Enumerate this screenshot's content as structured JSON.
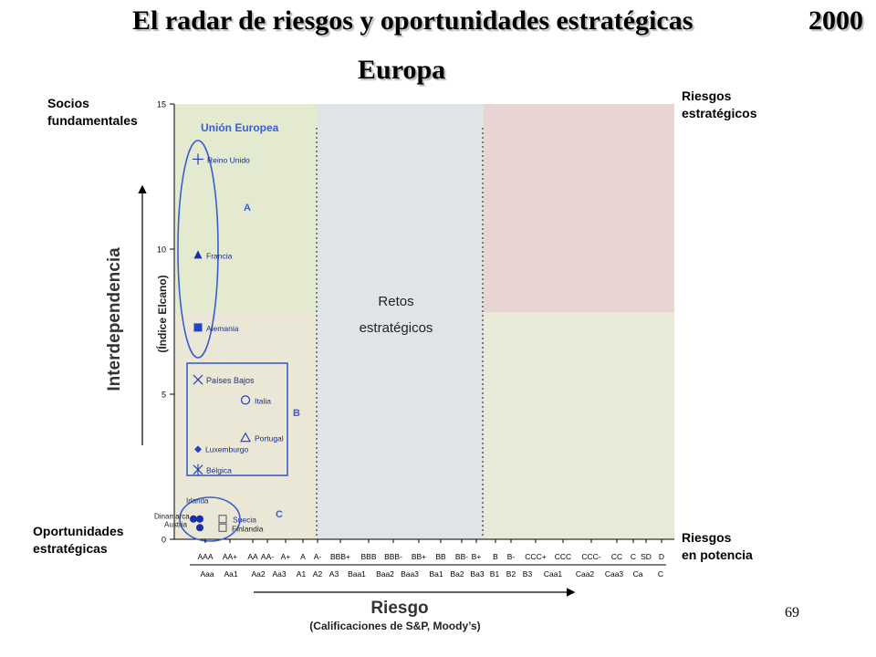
{
  "header": {
    "title": "El radar de riesgos y oportunidades estratégicas",
    "year": "2000",
    "subtitle": "Europa"
  },
  "corners": {
    "top_left": [
      "Socios",
      "fundamentales"
    ],
    "top_right": [
      "Riesgos",
      "estratégicos"
    ],
    "bottom_left": [
      "Oportunidades",
      "estratégicas"
    ],
    "bottom_right": [
      "Riesgos",
      "en potencia"
    ]
  },
  "page_number": "69",
  "chart_data": {
    "type": "scatter",
    "ylabel": "Interdependencia",
    "ylabel_sub": "(Índice Elcano)",
    "xlabel": "Riesgo",
    "xlabel_sub": "(Calificaciones de S&P, Moody’s)",
    "ylim": [
      0,
      15
    ],
    "yticks": [
      0,
      5,
      10,
      15
    ],
    "x_categories_sp": [
      "AAA",
      "AA+",
      "AA",
      "AA-",
      "A+",
      "A",
      "A-",
      "BBB+",
      "BBB",
      "BBB-",
      "BB+",
      "BB",
      "BB-",
      "B+",
      "B",
      "B-",
      "CCC+",
      "CCC",
      "CCC-",
      "CC",
      "C",
      "SD",
      "D"
    ],
    "x_categories_moodys": [
      "Aaa",
      "Aa1",
      "Aa2",
      "Aa3",
      "A1",
      "A2",
      "A3",
      "Baa1",
      "Baa2",
      "Baa3",
      "Ba1",
      "Ba2",
      "Ba3",
      "B1",
      "B2",
      "B3",
      "Caa1",
      "Caa2",
      "Caa3",
      "Ca",
      "C"
    ],
    "region_labels": {
      "group": "Unión Europea",
      "a": "A",
      "b": "B",
      "c": "C",
      "retos": [
        "Retos",
        "estratégicos"
      ]
    },
    "region_colors": {
      "top_left": "#e3eacf",
      "bottom_left": "#ebe7d6",
      "middle": "#dfe5e7",
      "top_right": "#e8d5d3",
      "bottom_right": "#e8e9d9"
    },
    "accent_color": "#3a5fcd",
    "points": [
      {
        "name": "Reino Unido",
        "marker": "plus",
        "x_rating": "AAA",
        "y": 13.1
      },
      {
        "name": "Francia",
        "marker": "triangle-filled",
        "x_rating": "AAA",
        "y": 9.8
      },
      {
        "name": "Alemania",
        "marker": "square-filled",
        "x_rating": "AAA",
        "y": 7.3
      },
      {
        "name": "Países Bajos",
        "marker": "x",
        "x_rating": "AAA",
        "y": 5.5
      },
      {
        "name": "Italia",
        "marker": "circle-open",
        "x_rating": "AA",
        "y": 4.8
      },
      {
        "name": "Portugal",
        "marker": "triangle-open",
        "x_rating": "AA",
        "y": 3.5
      },
      {
        "name": "Luxemburgo",
        "marker": "diamond-filled",
        "x_rating": "AAA",
        "y": 3.1
      },
      {
        "name": "Bélgica",
        "marker": "asterisk",
        "x_rating": "AAA",
        "y": 2.4
      },
      {
        "name": "Irlanda",
        "marker": "circle-filled",
        "x_rating": "AAA",
        "y": 0.7
      },
      {
        "name": "Dinamarca",
        "marker": "circle-filled",
        "x_rating": "AAA",
        "y": 0.7
      },
      {
        "name": "Suecia",
        "marker": "square-open",
        "x_rating": "AA+",
        "y": 0.7
      },
      {
        "name": "Austria",
        "marker": "circle-filled",
        "x_rating": "AAA",
        "y": 0.4
      },
      {
        "name": "Finlandia",
        "marker": "square-open",
        "x_rating": "AA+",
        "y": 0.4
      }
    ]
  }
}
